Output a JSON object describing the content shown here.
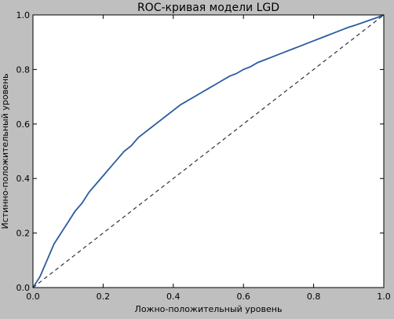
{
  "chart_data": {
    "type": "line",
    "title": "ROC-кривая модели LGD",
    "xlabel": "Ложно-положительный уровень",
    "ylabel": "Истинно-положительный уровень",
    "xlim": [
      0.0,
      1.0
    ],
    "ylim": [
      0.0,
      1.0
    ],
    "xticks": [
      "0.0",
      "0.2",
      "0.4",
      "0.6",
      "0.8",
      "1.0"
    ],
    "yticks": [
      "0.0",
      "0.2",
      "0.4",
      "0.6",
      "0.8",
      "1.0"
    ],
    "grid": false,
    "series": [
      {
        "color": "#2a5d9f",
        "style": "solid",
        "x": [
          0.0,
          0.01,
          0.02,
          0.03,
          0.04,
          0.05,
          0.06,
          0.08,
          0.1,
          0.12,
          0.14,
          0.16,
          0.18,
          0.2,
          0.22,
          0.24,
          0.26,
          0.28,
          0.3,
          0.32,
          0.34,
          0.36,
          0.38,
          0.4,
          0.42,
          0.44,
          0.46,
          0.48,
          0.5,
          0.52,
          0.54,
          0.56,
          0.58,
          0.6,
          0.62,
          0.64,
          0.66,
          0.68,
          0.7,
          0.72,
          0.74,
          0.76,
          0.78,
          0.8,
          0.82,
          0.84,
          0.86,
          0.88,
          0.9,
          0.92,
          0.94,
          0.96,
          0.98,
          1.0
        ],
        "y": [
          0.0,
          0.02,
          0.04,
          0.07,
          0.1,
          0.13,
          0.16,
          0.2,
          0.24,
          0.28,
          0.31,
          0.35,
          0.38,
          0.41,
          0.44,
          0.47,
          0.5,
          0.52,
          0.55,
          0.57,
          0.59,
          0.61,
          0.63,
          0.65,
          0.67,
          0.685,
          0.7,
          0.715,
          0.73,
          0.745,
          0.76,
          0.775,
          0.785,
          0.8,
          0.81,
          0.825,
          0.835,
          0.845,
          0.855,
          0.865,
          0.875,
          0.885,
          0.895,
          0.905,
          0.915,
          0.925,
          0.935,
          0.945,
          0.955,
          0.963,
          0.972,
          0.981,
          0.99,
          1.0
        ]
      },
      {
        "color": "#333333",
        "style": "dashed",
        "x": [
          0.0,
          1.0
        ],
        "y": [
          0.0,
          1.0
        ]
      }
    ]
  }
}
